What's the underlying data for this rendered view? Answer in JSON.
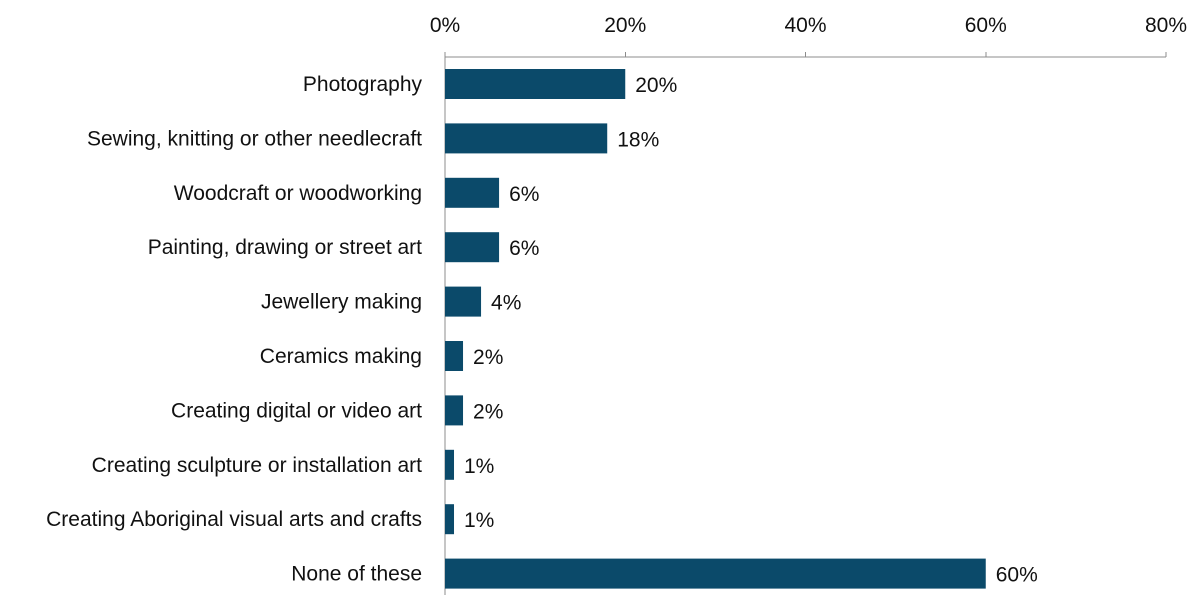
{
  "chart_data": {
    "type": "bar",
    "orientation": "horizontal",
    "categories": [
      "Photography",
      "Sewing, knitting or other needlecraft",
      "Woodcraft or woodworking",
      "Painting, drawing or street art",
      "Jewellery making",
      "Ceramics making",
      "Creating digital or video art",
      "Creating sculpture or installation art",
      "Creating Aboriginal visual arts and crafts",
      "None of these"
    ],
    "values": [
      20,
      18,
      6,
      6,
      4,
      2,
      2,
      1,
      1,
      60
    ],
    "data_labels": [
      "20%",
      "18%",
      "6%",
      "6%",
      "4%",
      "2%",
      "2%",
      "1%",
      "1%",
      "60%"
    ],
    "xlim": [
      0,
      80
    ],
    "x_ticks": [
      0,
      20,
      40,
      60,
      80
    ],
    "x_tick_labels": [
      "0%",
      "20%",
      "40%",
      "60%",
      "80%"
    ],
    "x_axis_position": "top",
    "grid": false,
    "legend": "none",
    "bar_color": "#0b4a6a"
  }
}
